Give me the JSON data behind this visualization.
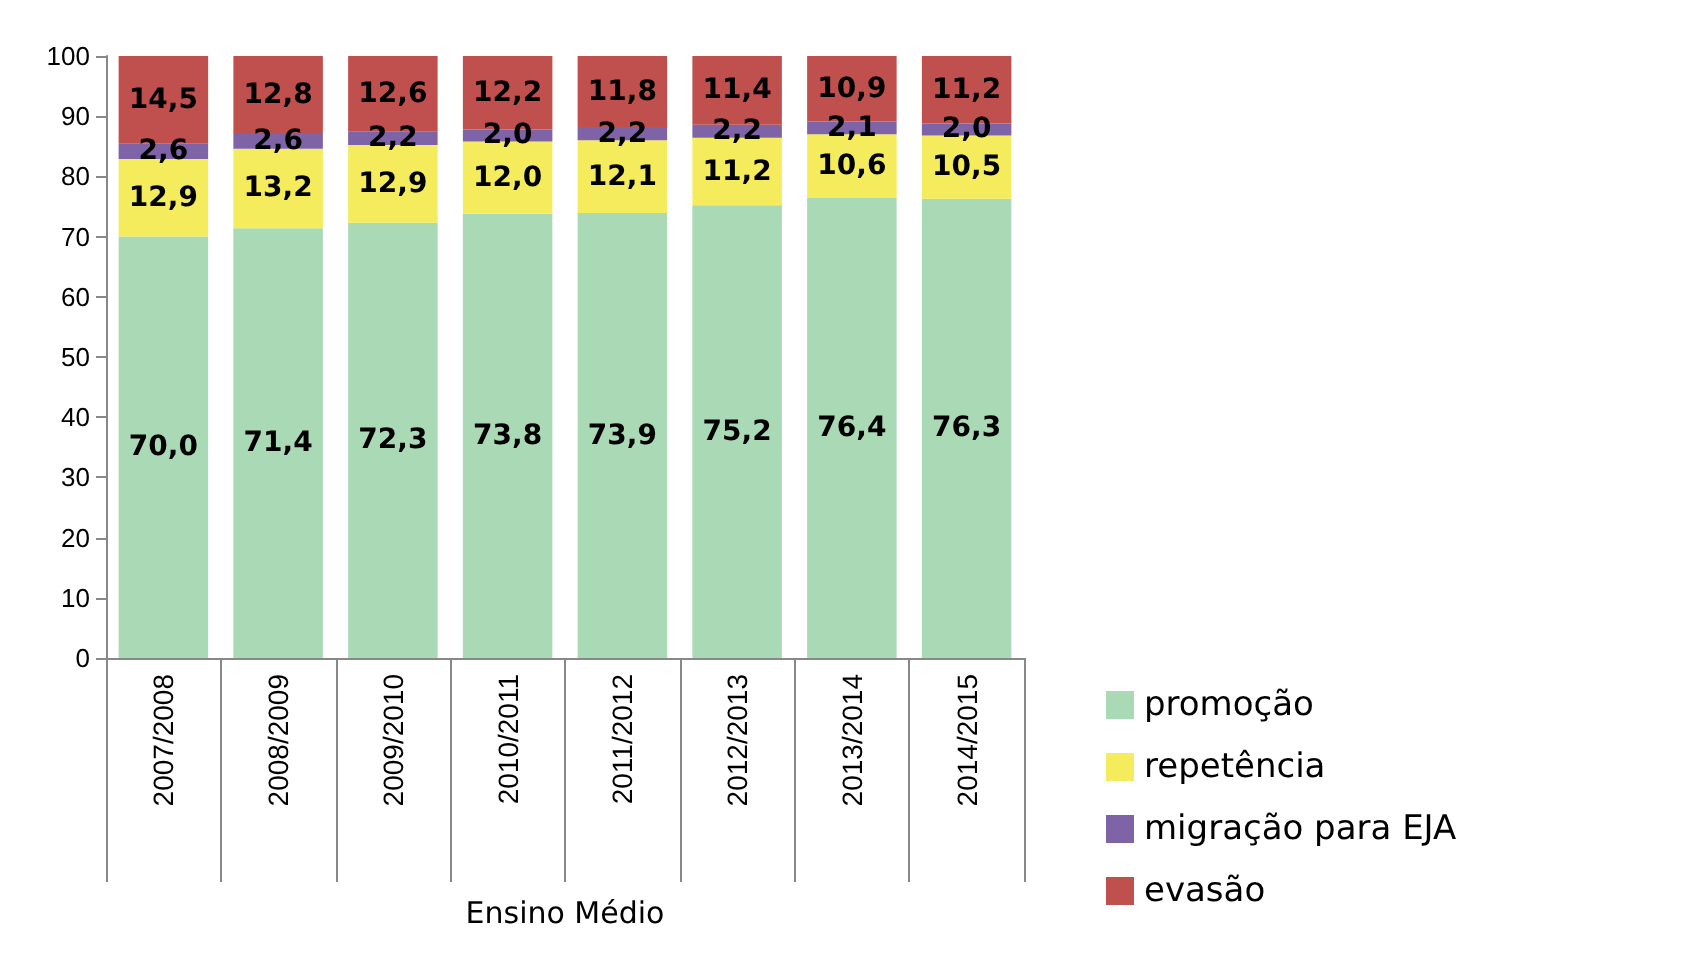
{
  "chart_data": {
    "type": "bar",
    "stacked": true,
    "xlabel": "Ensino Médio",
    "categories": [
      "2007/2008",
      "2008/2009",
      "2009/2010",
      "2010/2011",
      "2011/2012",
      "2012/2013",
      "2013/2014",
      "2014/2015"
    ],
    "series": [
      {
        "name": "promoção",
        "color": "#a9d9b5",
        "values": [
          70.0,
          71.4,
          72.3,
          73.8,
          73.9,
          75.2,
          76.4,
          76.3
        ],
        "value_labels": [
          "70,0",
          "71,4",
          "72,3",
          "73,8",
          "73,9",
          "75,2",
          "76,4",
          "76,3"
        ]
      },
      {
        "name": "repetência",
        "color": "#f4ec5c",
        "values": [
          12.9,
          13.2,
          12.9,
          12.0,
          12.1,
          11.2,
          10.6,
          10.5
        ],
        "value_labels": [
          "12,9",
          "13,2",
          "12,9",
          "12,0",
          "12,1",
          "11,2",
          "10,6",
          "10,5"
        ]
      },
      {
        "name": "migração para EJA",
        "color": "#7e63a6",
        "values": [
          2.6,
          2.6,
          2.2,
          2.0,
          2.2,
          2.2,
          2.1,
          2.0
        ],
        "value_labels": [
          "2,6",
          "2,6",
          "2,2",
          "2,0",
          "2,2",
          "2,2",
          "2,1",
          "2,0"
        ]
      },
      {
        "name": "evasão",
        "color": "#c0504d",
        "values": [
          14.5,
          12.8,
          12.6,
          12.2,
          11.8,
          11.4,
          10.9,
          11.2
        ],
        "value_labels": [
          "14,5",
          "12,8",
          "12,6",
          "12,2",
          "11,8",
          "11,4",
          "10,9",
          "11,2"
        ]
      }
    ],
    "ylim": [
      0,
      100
    ],
    "yticks": [
      0,
      10,
      20,
      30,
      40,
      50,
      60,
      70,
      80,
      90,
      100
    ],
    "grid": false,
    "legend": "bottom right"
  }
}
